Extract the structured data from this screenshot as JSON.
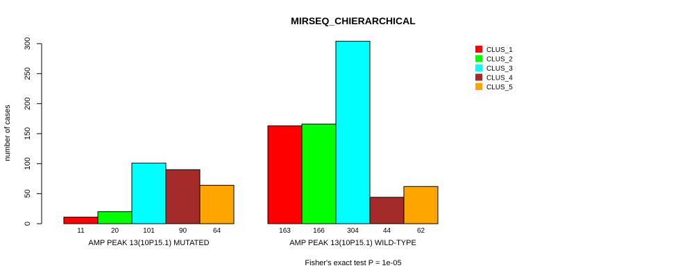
{
  "chart_data": {
    "type": "bar",
    "title": "MIRSEQ_CHIERARCHICAL",
    "ylabel": "number of cases",
    "xlabel": "Fisher's exact test P = 1e-05",
    "ylim": [
      0,
      300
    ],
    "yticks": [
      0,
      50,
      100,
      150,
      200,
      250,
      300
    ],
    "grid": false,
    "legend_position": "top-right",
    "groups": [
      "AMP PEAK 13(10P15.1) MUTATED",
      "AMP PEAK 13(10P15.1) WILD-TYPE"
    ],
    "series": [
      {
        "name": "CLUS_1",
        "color": "#ff0000",
        "values": [
          11,
          163
        ]
      },
      {
        "name": "CLUS_2",
        "color": "#00ff00",
        "values": [
          20,
          166
        ]
      },
      {
        "name": "CLUS_3",
        "color": "#00ffff",
        "values": [
          101,
          304
        ]
      },
      {
        "name": "CLUS_4",
        "color": "#a52a2a",
        "values": [
          90,
          44
        ]
      },
      {
        "name": "CLUS_5",
        "color": "#ffa500",
        "values": [
          64,
          62
        ]
      }
    ]
  }
}
